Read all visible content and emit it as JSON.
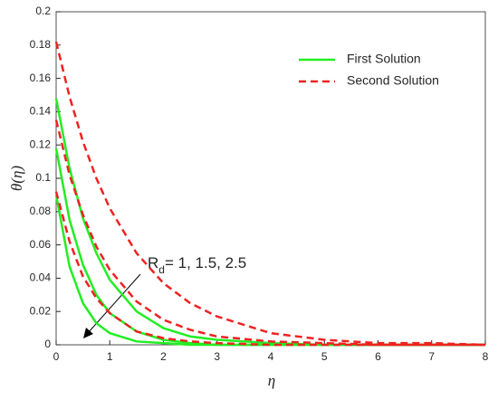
{
  "chart_data": {
    "type": "line",
    "x": [
      0,
      0.25,
      0.5,
      0.75,
      1,
      1.5,
      2,
      2.5,
      3,
      4,
      5,
      6,
      7,
      8
    ],
    "series": [
      {
        "name": "First Solution",
        "color": "#22ee22",
        "dashed": false,
        "values": [
          [
            0.148,
            0.106,
            0.076,
            0.055,
            0.039,
            0.02,
            0.01,
            0.005,
            0.003,
            0.001,
            0,
            0,
            0,
            0
          ],
          [
            0.118,
            0.075,
            0.048,
            0.03,
            0.019,
            0.008,
            0.003,
            0.001,
            0,
            0,
            0,
            0,
            0,
            0
          ],
          [
            0.09,
            0.047,
            0.025,
            0.013,
            0.007,
            0.002,
            0.001,
            0,
            0,
            0,
            0,
            0,
            0,
            0
          ]
        ]
      },
      {
        "name": "Second Solution",
        "color": "#ee2222",
        "dashed": true,
        "values": [
          [
            0.182,
            0.149,
            0.122,
            0.1,
            0.082,
            0.055,
            0.037,
            0.025,
            0.017,
            0.007,
            0.003,
            0.001,
            0.001,
            0
          ],
          [
            0.135,
            0.102,
            0.078,
            0.059,
            0.045,
            0.026,
            0.015,
            0.009,
            0.005,
            0.002,
            0.001,
            0,
            0,
            0
          ],
          [
            0.092,
            0.062,
            0.041,
            0.028,
            0.019,
            0.008,
            0.004,
            0.002,
            0.001,
            0,
            0,
            0,
            0,
            0
          ]
        ]
      }
    ],
    "xlabel": "η",
    "ylabel": "θ(η)",
    "xlim": [
      0,
      8
    ],
    "xticks": [
      0,
      1,
      2,
      3,
      4,
      5,
      6,
      7,
      8
    ],
    "ylim": [
      0,
      0.2
    ],
    "yticks": [
      0,
      0.02,
      0.04,
      0.06,
      0.08,
      0.1,
      0.12,
      0.14,
      0.16,
      0.18,
      0.2
    ],
    "legend": "upper right",
    "annotation": {
      "base": "R",
      "subscript": "d",
      "rest": "= 1, 1.5, 2.5"
    }
  }
}
